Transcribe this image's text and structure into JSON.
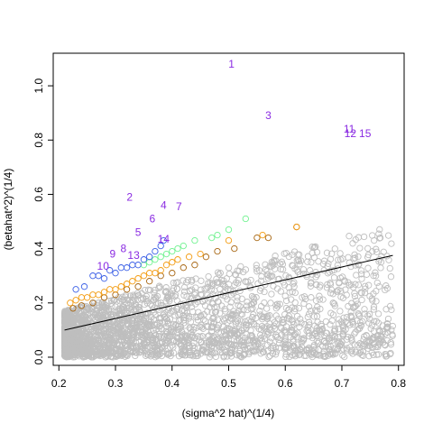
{
  "chart_data": {
    "type": "scatter",
    "title": "",
    "xlabel": "(sigma^2 hat)^(1/4)",
    "ylabel": "(betahat^2)^(1/4)",
    "xlim": [
      0.19,
      0.81
    ],
    "ylim": [
      -0.03,
      1.12
    ],
    "x_ticks": [
      "0.2",
      "0.3",
      "0.4",
      "0.5",
      "0.6",
      "0.7",
      "0.8"
    ],
    "y_ticks": [
      "0.0",
      "0.2",
      "0.4",
      "0.6",
      "0.8",
      "1.0"
    ],
    "grid": false,
    "legend": "none",
    "colors": {
      "background_points": "#bebebe",
      "blue": "#3a5fe6",
      "green": "#6ff28f",
      "orange": "#f39c12",
      "brown": "#a6640f",
      "labels": "#8a2be2",
      "line": "#000000"
    },
    "fit_line": {
      "x": [
        0.21,
        0.79
      ],
      "y": [
        0.1,
        0.375
      ]
    },
    "background_cloud": {
      "description_points": "dense cloud below the fitted line",
      "x_range": [
        0.21,
        0.79
      ],
      "y_range": [
        0.0,
        0.49
      ]
    },
    "highlighted": {
      "blue": [
        [
          0.23,
          0.25
        ],
        [
          0.245,
          0.26
        ],
        [
          0.26,
          0.3
        ],
        [
          0.27,
          0.3
        ],
        [
          0.28,
          0.29
        ],
        [
          0.29,
          0.32
        ],
        [
          0.3,
          0.31
        ],
        [
          0.31,
          0.33
        ],
        [
          0.32,
          0.33
        ],
        [
          0.33,
          0.34
        ],
        [
          0.34,
          0.34
        ],
        [
          0.35,
          0.36
        ],
        [
          0.36,
          0.37
        ],
        [
          0.37,
          0.39
        ],
        [
          0.38,
          0.41
        ],
        [
          0.385,
          0.43
        ]
      ],
      "green": [
        [
          0.35,
          0.34
        ],
        [
          0.36,
          0.35
        ],
        [
          0.37,
          0.36
        ],
        [
          0.38,
          0.37
        ],
        [
          0.39,
          0.38
        ],
        [
          0.4,
          0.39
        ],
        [
          0.41,
          0.4
        ],
        [
          0.42,
          0.41
        ],
        [
          0.44,
          0.43
        ],
        [
          0.47,
          0.44
        ],
        [
          0.48,
          0.45
        ],
        [
          0.5,
          0.47
        ],
        [
          0.53,
          0.51
        ]
      ],
      "orange": [
        [
          0.22,
          0.2
        ],
        [
          0.23,
          0.21
        ],
        [
          0.24,
          0.22
        ],
        [
          0.25,
          0.22
        ],
        [
          0.26,
          0.23
        ],
        [
          0.27,
          0.23
        ],
        [
          0.28,
          0.24
        ],
        [
          0.29,
          0.25
        ],
        [
          0.3,
          0.25
        ],
        [
          0.31,
          0.26
        ],
        [
          0.32,
          0.27
        ],
        [
          0.33,
          0.28
        ],
        [
          0.34,
          0.29
        ],
        [
          0.35,
          0.3
        ],
        [
          0.36,
          0.31
        ],
        [
          0.37,
          0.31
        ],
        [
          0.38,
          0.32
        ],
        [
          0.39,
          0.34
        ],
        [
          0.4,
          0.35
        ],
        [
          0.41,
          0.36
        ],
        [
          0.43,
          0.37
        ],
        [
          0.45,
          0.38
        ],
        [
          0.5,
          0.43
        ],
        [
          0.56,
          0.45
        ],
        [
          0.62,
          0.48
        ]
      ],
      "brown": [
        [
          0.225,
          0.18
        ],
        [
          0.24,
          0.19
        ],
        [
          0.26,
          0.2
        ],
        [
          0.28,
          0.22
        ],
        [
          0.3,
          0.23
        ],
        [
          0.32,
          0.25
        ],
        [
          0.34,
          0.26
        ],
        [
          0.36,
          0.28
        ],
        [
          0.38,
          0.3
        ],
        [
          0.4,
          0.31
        ],
        [
          0.42,
          0.33
        ],
        [
          0.44,
          0.34
        ],
        [
          0.46,
          0.37
        ],
        [
          0.48,
          0.39
        ],
        [
          0.51,
          0.4
        ],
        [
          0.55,
          0.44
        ],
        [
          0.57,
          0.44
        ],
        [
          0.62,
          0.48
        ]
      ]
    },
    "numbered_points": [
      {
        "label": "1",
        "x": 0.505,
        "y": 1.08
      },
      {
        "label": "2",
        "x": 0.325,
        "y": 0.59
      },
      {
        "label": "3",
        "x": 0.57,
        "y": 0.89
      },
      {
        "label": "4",
        "x": 0.385,
        "y": 0.56
      },
      {
        "label": "5",
        "x": 0.34,
        "y": 0.46
      },
      {
        "label": "6",
        "x": 0.365,
        "y": 0.51
      },
      {
        "label": "7",
        "x": 0.412,
        "y": 0.555
      },
      {
        "label": "8",
        "x": 0.314,
        "y": 0.4
      },
      {
        "label": "9",
        "x": 0.295,
        "y": 0.38
      },
      {
        "label": "10",
        "x": 0.278,
        "y": 0.335
      },
      {
        "label": "11",
        "x": 0.713,
        "y": 0.84
      },
      {
        "label": "12",
        "x": 0.715,
        "y": 0.825
      },
      {
        "label": "13",
        "x": 0.332,
        "y": 0.375
      },
      {
        "label": "14",
        "x": 0.385,
        "y": 0.435
      },
      {
        "label": "15",
        "x": 0.741,
        "y": 0.825
      }
    ]
  }
}
